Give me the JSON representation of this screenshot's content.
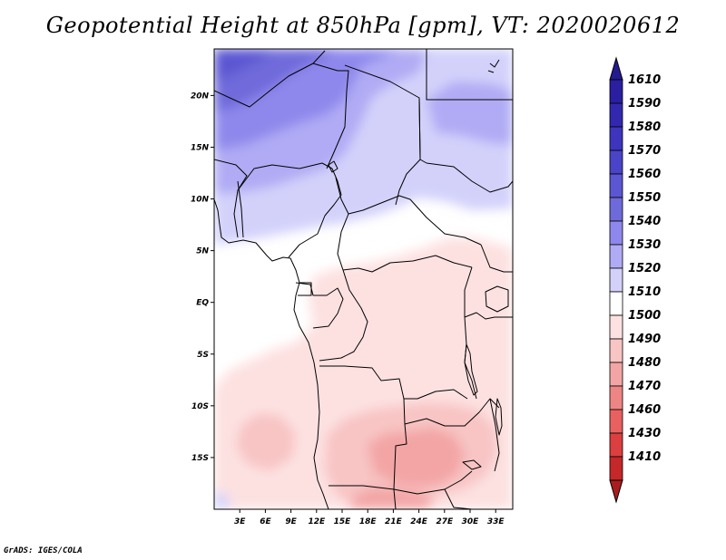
{
  "title": "Geopotential Height at 850hPa [gpm], VT: 2020020612",
  "credit": "GrADS: IGES/COLA",
  "map": {
    "lon_range": [
      0,
      35
    ],
    "lat_range": [
      -20,
      24.5
    ],
    "x_ticks": [
      {
        "lon": 3,
        "label": "3E"
      },
      {
        "lon": 6,
        "label": "6E"
      },
      {
        "lon": 9,
        "label": "9E"
      },
      {
        "lon": 12,
        "label": "12E"
      },
      {
        "lon": 15,
        "label": "15E"
      },
      {
        "lon": 18,
        "label": "18E"
      },
      {
        "lon": 21,
        "label": "21E"
      },
      {
        "lon": 24,
        "label": "24E"
      },
      {
        "lon": 27,
        "label": "27E"
      },
      {
        "lon": 30,
        "label": "30E"
      },
      {
        "lon": 33,
        "label": "33E"
      }
    ],
    "y_ticks": [
      {
        "lat": 20,
        "label": "20N"
      },
      {
        "lat": 15,
        "label": "15N"
      },
      {
        "lat": 10,
        "label": "10N"
      },
      {
        "lat": 5,
        "label": "5N"
      },
      {
        "lat": 0,
        "label": "EQ"
      },
      {
        "lat": -5,
        "label": "5S"
      },
      {
        "lat": -10,
        "label": "10S"
      },
      {
        "lat": -15,
        "label": "15S"
      }
    ]
  },
  "colorbar": {
    "levels": [
      {
        "label": "1610",
        "color": "#2a1fa0"
      },
      {
        "label": "1590",
        "color": "#3228b0"
      },
      {
        "label": "1580",
        "color": "#3d35be"
      },
      {
        "label": "1570",
        "color": "#4a44c8"
      },
      {
        "label": "1560",
        "color": "#5b56d2"
      },
      {
        "label": "1550",
        "color": "#6f6ada"
      },
      {
        "label": "1540",
        "color": "#8e88ec"
      },
      {
        "label": "1530",
        "color": "#b0abf4"
      },
      {
        "label": "1520",
        "color": "#d3d1fa"
      },
      {
        "label": "1510",
        "color": "#ffffff"
      },
      {
        "label": "1500",
        "color": "#fde1e1"
      },
      {
        "label": "1490",
        "color": "#f8c4c4"
      },
      {
        "label": "1480",
        "color": "#f3a5a5"
      },
      {
        "label": "1470",
        "color": "#ee8585"
      },
      {
        "label": "1460",
        "color": "#e86060"
      },
      {
        "label": "1430",
        "color": "#db3f3f"
      },
      {
        "label": "1410",
        "color": "#c42828"
      }
    ],
    "top_color": "#241a90",
    "bottom_color": "#a81e1e"
  }
}
